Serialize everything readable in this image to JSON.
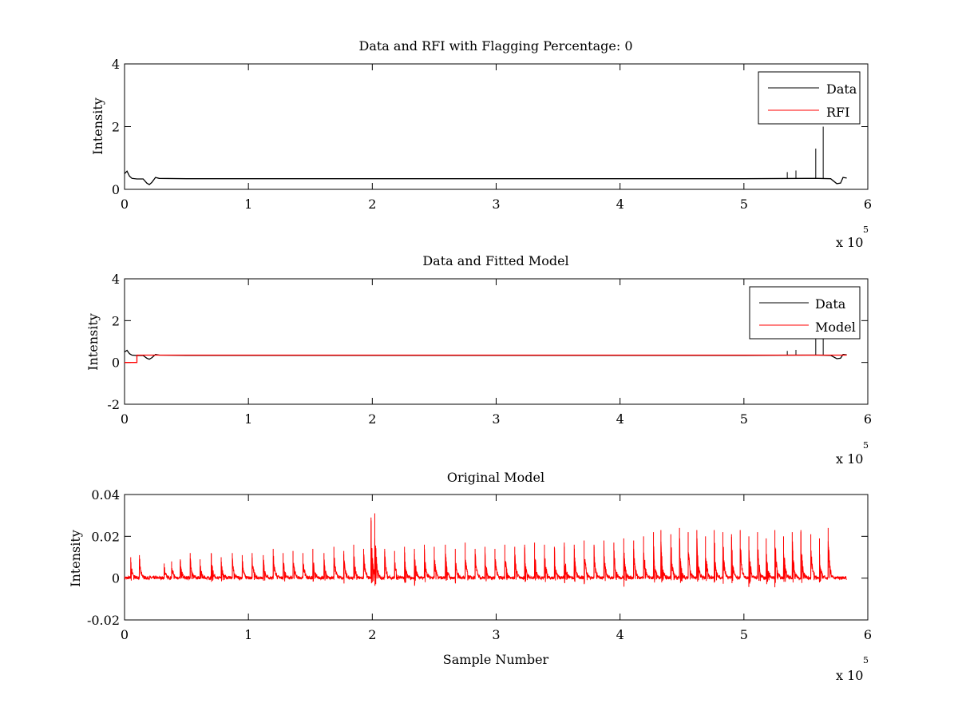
{
  "figure": {
    "colors": {
      "data": "#000000",
      "rfi": "#ff0000",
      "background": "#ffffff",
      "axes": "#000000"
    },
    "x_multiplier_base": "x 10",
    "x_multiplier_exponent": "5"
  },
  "chart_data": [
    {
      "type": "line",
      "title": "Data and RFI with Flagging Percentage: 0",
      "xlabel": "",
      "ylabel": "Intensity",
      "xlim": [
        0,
        6
      ],
      "ylim": [
        0,
        4
      ],
      "xticks": [
        "0",
        "1",
        "2",
        "3",
        "4",
        "5",
        "6"
      ],
      "yticks": [
        "0",
        "2",
        "4"
      ],
      "legend_position": "top-right",
      "series": [
        {
          "name": "Data",
          "color": "#000000",
          "x": [
            0,
            0.02,
            0.04,
            0.06,
            0.1,
            0.15,
            0.18,
            0.2,
            0.22,
            0.25,
            0.28,
            0.5,
            1.0,
            2.0,
            3.0,
            4.0,
            5.0,
            5.5,
            5.6,
            5.7,
            5.75,
            5.78,
            5.8,
            5.83
          ],
          "y": [
            0.5,
            0.58,
            0.42,
            0.35,
            0.33,
            0.33,
            0.2,
            0.15,
            0.22,
            0.38,
            0.35,
            0.34,
            0.34,
            0.34,
            0.34,
            0.34,
            0.34,
            0.35,
            0.35,
            0.34,
            0.18,
            0.2,
            0.38,
            0.36
          ],
          "spikes": [
            {
              "x": 5.35,
              "y": 0.55
            },
            {
              "x": 5.42,
              "y": 0.6
            },
            {
              "x": 5.58,
              "y": 1.3
            },
            {
              "x": 5.64,
              "y": 2.0
            }
          ]
        },
        {
          "name": "RFI",
          "color": "#ff0000",
          "x": [],
          "y": []
        }
      ]
    },
    {
      "type": "line",
      "title": "Data and Fitted Model",
      "xlabel": "",
      "ylabel": "Intensity",
      "xlim": [
        0,
        6
      ],
      "ylim": [
        -2,
        4
      ],
      "xticks": [
        "0",
        "1",
        "2",
        "3",
        "4",
        "5",
        "6"
      ],
      "yticks": [
        "-2",
        "0",
        "2",
        "4"
      ],
      "legend_position": "top-right",
      "series": [
        {
          "name": "Data",
          "color": "#000000",
          "x": [
            0,
            0.02,
            0.04,
            0.06,
            0.1,
            0.15,
            0.18,
            0.2,
            0.22,
            0.25,
            0.28,
            0.5,
            1.0,
            2.0,
            3.0,
            4.0,
            5.0,
            5.5,
            5.6,
            5.7,
            5.75,
            5.78,
            5.8,
            5.83
          ],
          "y": [
            0.5,
            0.58,
            0.42,
            0.35,
            0.33,
            0.33,
            0.2,
            0.15,
            0.22,
            0.38,
            0.35,
            0.34,
            0.34,
            0.34,
            0.34,
            0.34,
            0.34,
            0.35,
            0.35,
            0.34,
            0.18,
            0.2,
            0.38,
            0.36
          ],
          "spikes": [
            {
              "x": 5.35,
              "y": 0.55
            },
            {
              "x": 5.42,
              "y": 0.6
            },
            {
              "x": 5.58,
              "y": 1.3
            },
            {
              "x": 5.64,
              "y": 2.0
            }
          ]
        },
        {
          "name": "Model",
          "color": "#ff0000",
          "x": [
            0,
            0.1,
            0.1,
            5.83
          ],
          "y": [
            0,
            0,
            0.35,
            0.35
          ]
        }
      ]
    },
    {
      "type": "line",
      "title": "Original Model",
      "xlabel": "Sample Number",
      "ylabel": "Intensity",
      "xlim": [
        0,
        6
      ],
      "ylim": [
        -0.02,
        0.04
      ],
      "xticks": [
        "0",
        "1",
        "2",
        "3",
        "4",
        "5",
        "6"
      ],
      "yticks": [
        "-0.02",
        "0",
        "0.02",
        "0.04"
      ],
      "series": [
        {
          "name": "",
          "color": "#ff0000",
          "x_start": 0.0,
          "x_end": 5.83,
          "bursts": [
            {
              "x": 0.05,
              "peak": 0.01
            },
            {
              "x": 0.12,
              "peak": 0.011
            },
            {
              "x": 0.32,
              "peak": 0.007
            },
            {
              "x": 0.38,
              "peak": 0.008
            },
            {
              "x": 0.45,
              "peak": 0.009
            },
            {
              "x": 0.53,
              "peak": 0.012
            },
            {
              "x": 0.61,
              "peak": 0.009
            },
            {
              "x": 0.7,
              "peak": 0.012
            },
            {
              "x": 0.78,
              "peak": 0.01
            },
            {
              "x": 0.87,
              "peak": 0.012
            },
            {
              "x": 0.95,
              "peak": 0.011
            },
            {
              "x": 1.03,
              "peak": 0.012
            },
            {
              "x": 1.12,
              "peak": 0.011
            },
            {
              "x": 1.2,
              "peak": 0.014
            },
            {
              "x": 1.28,
              "peak": 0.012
            },
            {
              "x": 1.36,
              "peak": 0.013
            },
            {
              "x": 1.44,
              "peak": 0.012
            },
            {
              "x": 1.52,
              "peak": 0.014
            },
            {
              "x": 1.61,
              "peak": 0.012
            },
            {
              "x": 1.69,
              "peak": 0.015
            },
            {
              "x": 1.77,
              "peak": 0.013
            },
            {
              "x": 1.85,
              "peak": 0.016
            },
            {
              "x": 1.93,
              "peak": 0.014
            },
            {
              "x": 1.99,
              "peak": 0.029
            },
            {
              "x": 2.02,
              "peak": 0.031
            },
            {
              "x": 2.1,
              "peak": 0.014
            },
            {
              "x": 2.18,
              "peak": 0.013
            },
            {
              "x": 2.26,
              "peak": 0.015
            },
            {
              "x": 2.34,
              "peak": 0.014
            },
            {
              "x": 2.42,
              "peak": 0.016
            },
            {
              "x": 2.5,
              "peak": 0.015
            },
            {
              "x": 2.59,
              "peak": 0.016
            },
            {
              "x": 2.67,
              "peak": 0.014
            },
            {
              "x": 2.75,
              "peak": 0.017
            },
            {
              "x": 2.83,
              "peak": 0.014
            },
            {
              "x": 2.91,
              "peak": 0.015
            },
            {
              "x": 2.99,
              "peak": 0.014
            },
            {
              "x": 3.07,
              "peak": 0.016
            },
            {
              "x": 3.15,
              "peak": 0.015
            },
            {
              "x": 3.23,
              "peak": 0.016
            },
            {
              "x": 3.31,
              "peak": 0.017
            },
            {
              "x": 3.39,
              "peak": 0.016
            },
            {
              "x": 3.47,
              "peak": 0.015
            },
            {
              "x": 3.55,
              "peak": 0.017
            },
            {
              "x": 3.63,
              "peak": 0.016
            },
            {
              "x": 3.71,
              "peak": 0.018
            },
            {
              "x": 3.79,
              "peak": 0.016
            },
            {
              "x": 3.87,
              "peak": 0.018
            },
            {
              "x": 3.95,
              "peak": 0.017
            },
            {
              "x": 4.03,
              "peak": 0.019
            },
            {
              "x": 4.11,
              "peak": 0.018
            },
            {
              "x": 4.19,
              "peak": 0.02
            },
            {
              "x": 4.27,
              "peak": 0.022
            },
            {
              "x": 4.33,
              "peak": 0.023
            },
            {
              "x": 4.41,
              "peak": 0.021
            },
            {
              "x": 4.48,
              "peak": 0.024
            },
            {
              "x": 4.55,
              "peak": 0.022
            },
            {
              "x": 4.62,
              "peak": 0.023
            },
            {
              "x": 4.69,
              "peak": 0.02
            },
            {
              "x": 4.76,
              "peak": 0.023
            },
            {
              "x": 4.83,
              "peak": 0.022
            },
            {
              "x": 4.9,
              "peak": 0.021
            },
            {
              "x": 4.97,
              "peak": 0.023
            },
            {
              "x": 5.04,
              "peak": 0.02
            },
            {
              "x": 5.11,
              "peak": 0.022
            },
            {
              "x": 5.18,
              "peak": 0.019
            },
            {
              "x": 5.25,
              "peak": 0.023
            },
            {
              "x": 5.32,
              "peak": 0.02
            },
            {
              "x": 5.39,
              "peak": 0.022
            },
            {
              "x": 5.46,
              "peak": 0.023
            },
            {
              "x": 5.54,
              "peak": 0.021
            },
            {
              "x": 5.61,
              "peak": 0.019
            },
            {
              "x": 5.68,
              "peak": 0.024
            }
          ]
        }
      ]
    }
  ]
}
